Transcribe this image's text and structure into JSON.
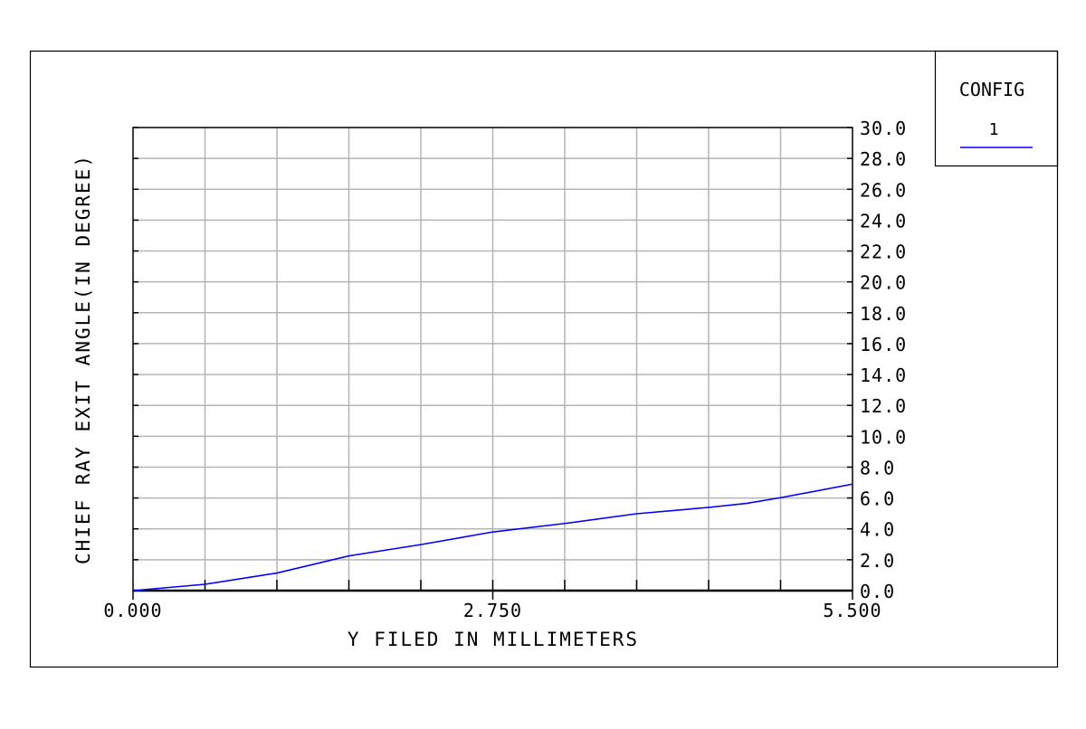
{
  "chart_data": {
    "type": "line",
    "title": "",
    "xlabel": "Y FILED IN MILLIMETERS",
    "ylabel": "CHIEF RAY EXIT ANGLE(IN DEGREE)",
    "xlim": [
      0,
      5.5
    ],
    "ylim": [
      0,
      30
    ],
    "x_tick_labels": [
      "0.000",
      "2.750",
      "5.500"
    ],
    "y_tick_labels": [
      "0.0",
      "2.0",
      "4.0",
      "6.0",
      "8.0",
      "10.0",
      "12.0",
      "14.0",
      "16.0",
      "18.0",
      "20.0",
      "22.0",
      "24.0",
      "26.0",
      "28.0",
      "30.0"
    ],
    "grid": true,
    "y_axis_side": "right",
    "legend_placement": "top-right",
    "legend": {
      "title": "CONFIG",
      "entries": [
        "1"
      ]
    },
    "series": [
      {
        "name": "1",
        "color": "#0000ff",
        "x": [
          0,
          0.55,
          1.1,
          1.65,
          2.2,
          2.75,
          3.3,
          3.85,
          4.4,
          4.69,
          4.95,
          5.5
        ],
        "y": [
          0,
          0.41,
          1.14,
          2.25,
          2.98,
          3.8,
          4.35,
          4.98,
          5.39,
          5.65,
          6.02,
          6.9
        ]
      }
    ]
  }
}
